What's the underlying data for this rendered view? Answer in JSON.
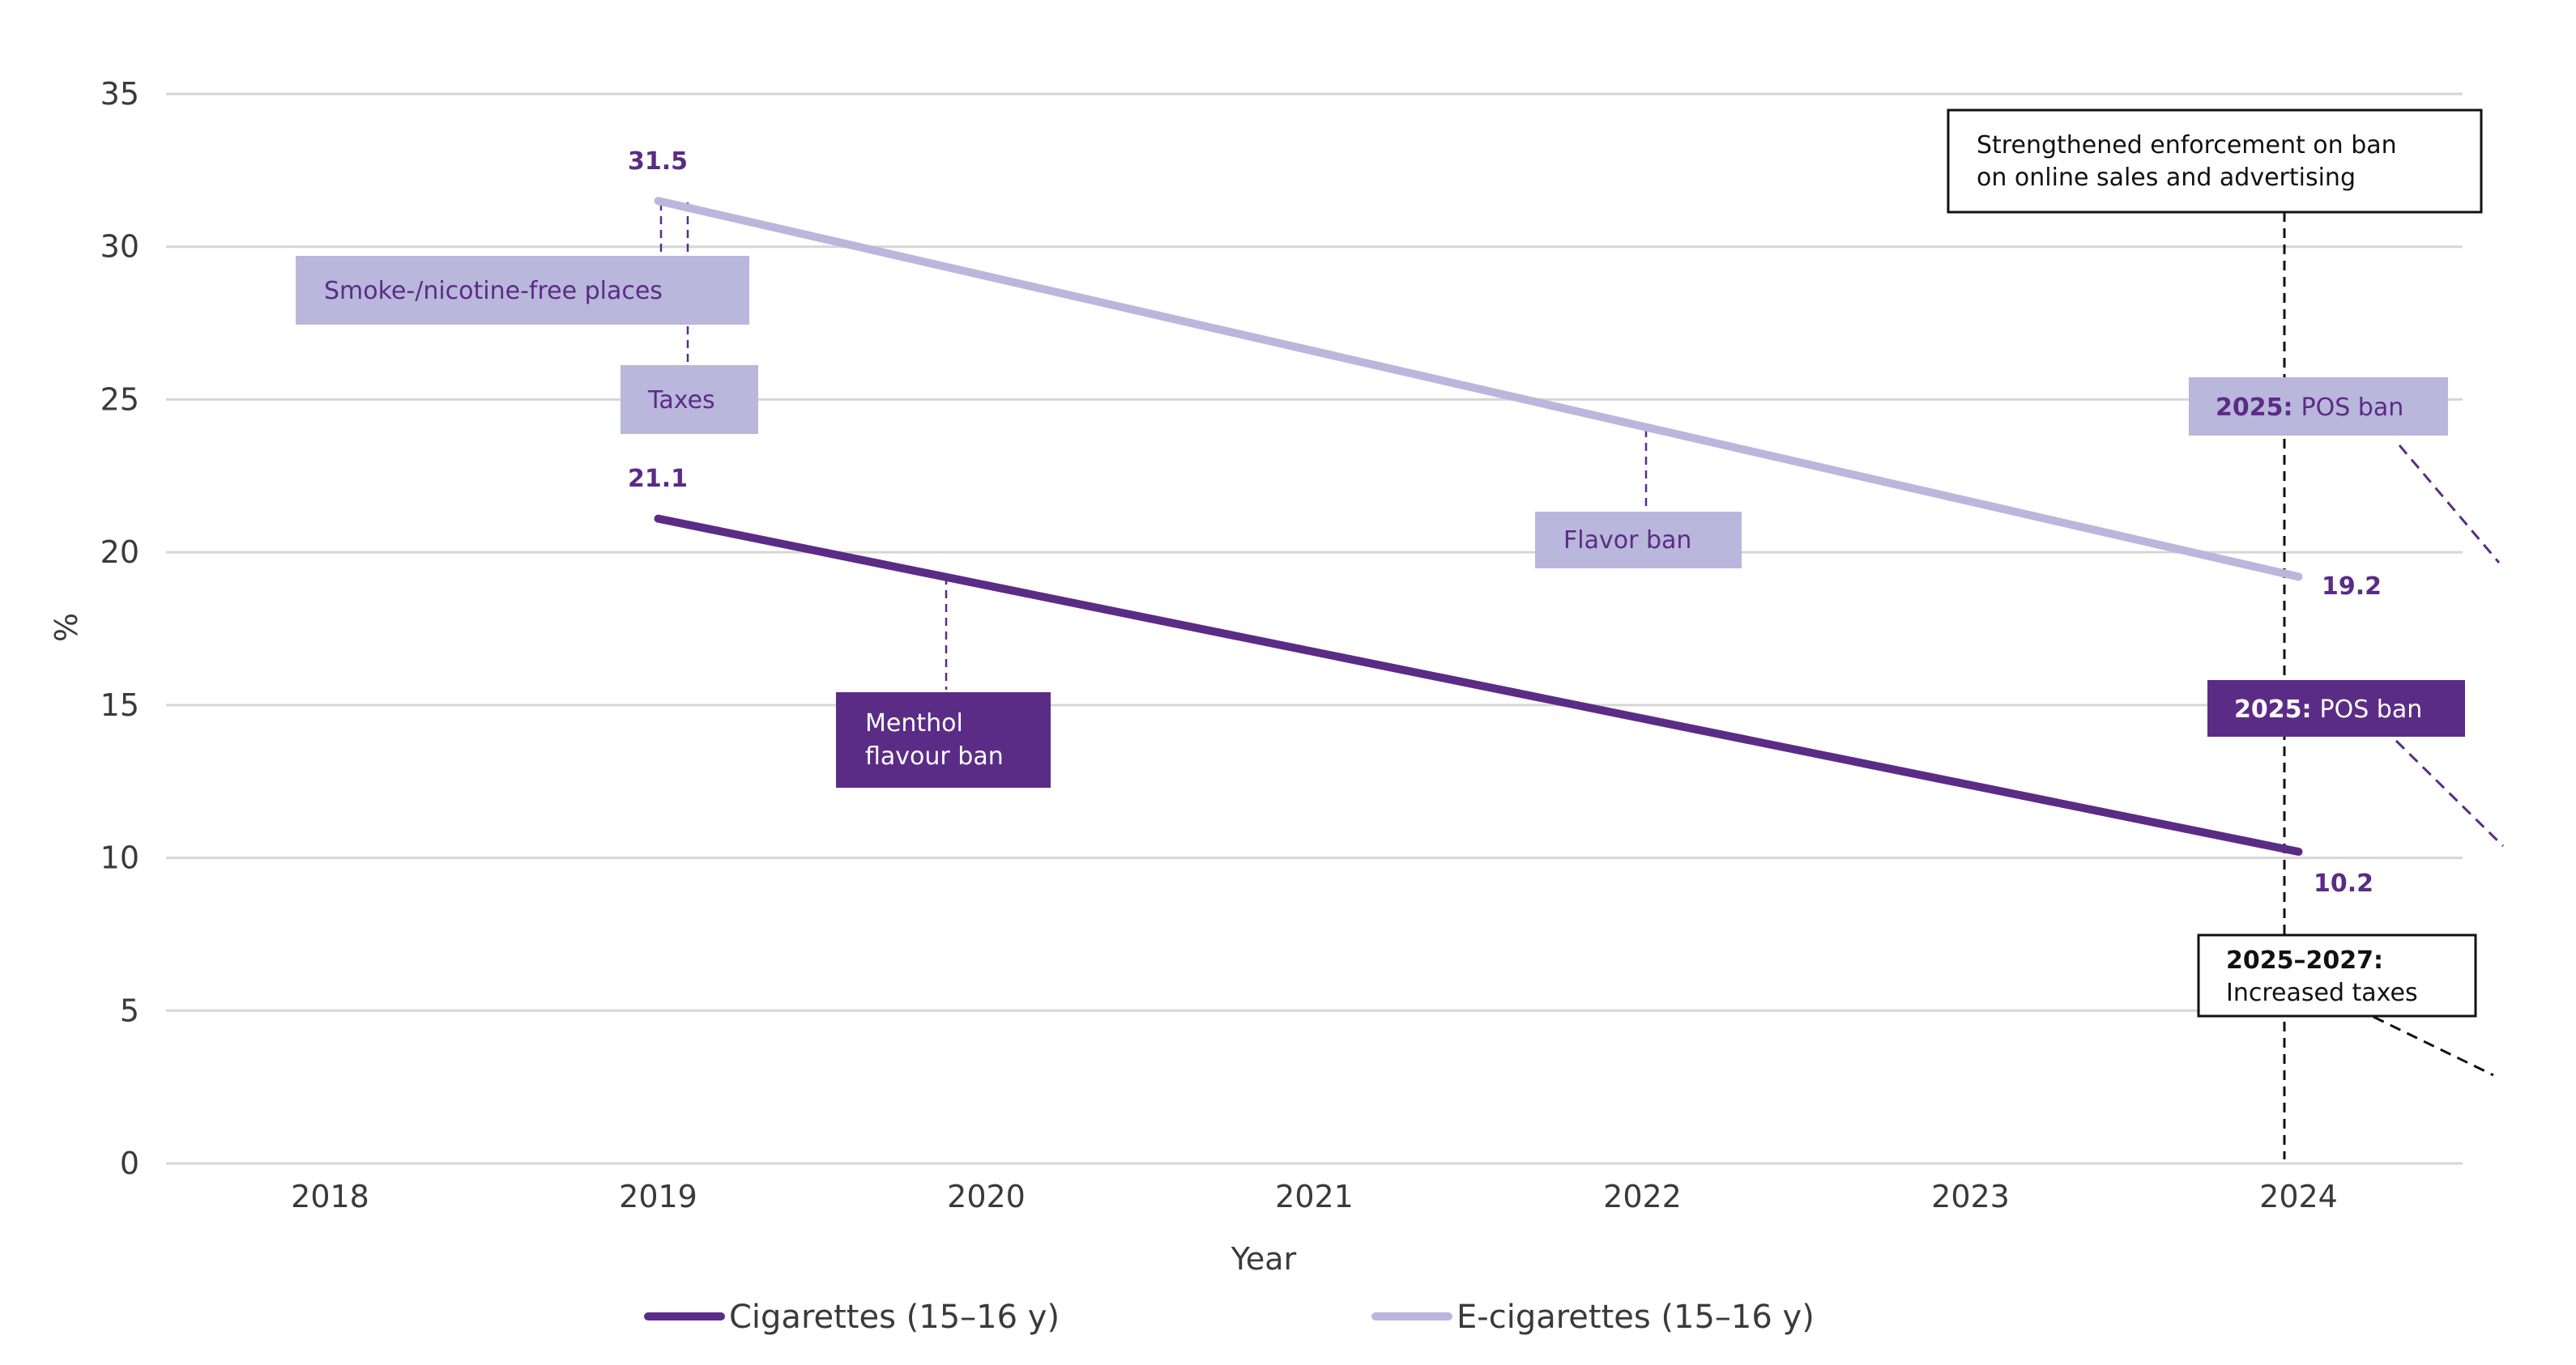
{
  "colors": {
    "cigarettes": "#5b2c86",
    "ecigarettes": "#b9b7dc",
    "annotation_text_dark": "#5b2c86",
    "grid": "#d6d6d6",
    "black": "#111111"
  },
  "chart_data": {
    "type": "line",
    "x": [
      2019,
      2024
    ],
    "xlabel": "Year",
    "ylabel": "%",
    "xlim": [
      2017.5,
      2024.5
    ],
    "ylim": [
      0,
      35
    ],
    "xticks": [
      "2018",
      "2019",
      "2020",
      "2021",
      "2022",
      "2023",
      "2024"
    ],
    "yticks": [
      "0",
      "5",
      "10",
      "15",
      "20",
      "25",
      "30",
      "35"
    ],
    "grid": true,
    "legend_position": "bottom",
    "series": [
      {
        "name": "Cigarettes (15–16 y)",
        "values": [
          21.1,
          10.2
        ],
        "labels": [
          "21.1",
          "10.2"
        ]
      },
      {
        "name": "E-cigarettes (15–16 y)",
        "values": [
          31.5,
          19.2
        ],
        "labels": [
          "31.5",
          "19.2"
        ]
      }
    ],
    "annotations": [
      {
        "id": "smoke_free",
        "text": [
          "Smoke-/nicotine-free places"
        ],
        "style": "light",
        "x": 2019
      },
      {
        "id": "taxes",
        "text": [
          "Taxes"
        ],
        "style": "light",
        "x": 2019
      },
      {
        "id": "flavor_ban",
        "text": [
          "Flavor ban"
        ],
        "style": "light",
        "x": 2022
      },
      {
        "id": "menthol_ban",
        "text": [
          "Menthol",
          "flavour ban"
        ],
        "style": "dark",
        "x": 2019.88
      },
      {
        "id": "online_sales",
        "text": [
          "Strengthened enforcement on ban",
          "on online sales and advertising"
        ],
        "style": "outline",
        "x": 2024
      },
      {
        "id": "pos_ban_ecig",
        "bold": "2025:",
        "text": [
          "POS ban"
        ],
        "style": "light"
      },
      {
        "id": "pos_ban_cig",
        "bold": "2025:",
        "text": [
          "POS ban"
        ],
        "style": "dark"
      },
      {
        "id": "increased_taxes",
        "bold": "2025–2027:",
        "text": [
          "Increased taxes"
        ],
        "style": "outline"
      }
    ]
  }
}
